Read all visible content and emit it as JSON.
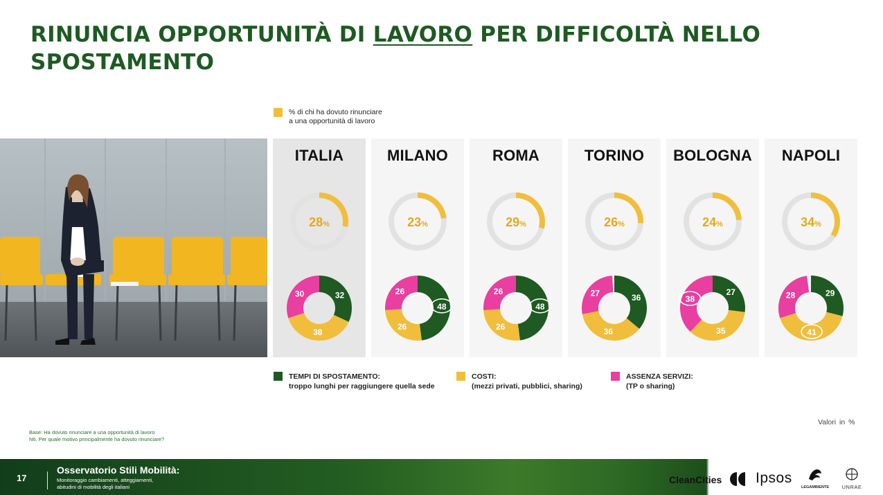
{
  "title": {
    "part1": "RINUNCIA OPPORTUNITÀ DI ",
    "underlined": "LAVORO",
    "part2": " PER DIFFICOLTÀ NELLO SPOSTAMENTO"
  },
  "legend_top": {
    "line1": "% di chi ha dovuto rinunciare",
    "line2": "a una opportunità di lavoro"
  },
  "colors": {
    "share": "#F0BE3C",
    "ring_bg": "#E2E2E2",
    "tempi": "#1E5A22",
    "costi": "#F0BE3C",
    "assenza": "#E83FA0",
    "title": "#1E5A22"
  },
  "chart_data": {
    "type": "pie",
    "subtype": "donut",
    "title": "Rinuncia opportunità di lavoro per difficoltà nello spostamento",
    "unit": "%",
    "categories": [
      "ITALIA",
      "MILANO",
      "ROMA",
      "TORINO",
      "BOLOGNA",
      "NAPOLI"
    ],
    "share_rinuncia": [
      28,
      23,
      29,
      26,
      24,
      34
    ],
    "motivi_series": [
      {
        "key": "tempi",
        "name": "TEMPI DI SPOSTAMENTO",
        "values": [
          32,
          48,
          48,
          36,
          27,
          29
        ]
      },
      {
        "key": "costi",
        "name": "COSTI",
        "values": [
          38,
          26,
          26,
          36,
          35,
          41
        ]
      },
      {
        "key": "assenza",
        "name": "ASSENZA SERVIZI",
        "values": [
          30,
          26,
          26,
          27,
          38,
          28
        ]
      }
    ],
    "highlighted": [
      "",
      "tempi",
      "tempi",
      "",
      "assenza",
      "costi"
    ]
  },
  "legend_bottom": [
    {
      "key": "tempi",
      "line1": "TEMPI DI SPOSTAMENTO:",
      "line2": "troppo lunghi per raggiungere quella sede"
    },
    {
      "key": "costi",
      "line1": "COSTI:",
      "line2": "(mezzi privati, pubblici, sharing)"
    },
    {
      "key": "assenza",
      "line1": "ASSENZA SERVIZI:",
      "line2": "(TP o sharing)"
    }
  ],
  "valori": "Valori in %",
  "notes": {
    "base": "Base: Ha dovuto rinunciare a una opportunità di lavoro",
    "question": "N6. Per quale motivo principalmente ha dovuto rinunciare?"
  },
  "footer": {
    "page": "17",
    "title": "Osservatorio Stili Mobilità:",
    "sub1": "Monitoraggio cambiamenti, atteggiamenti,",
    "sub2": "abitudini di mobilità degli italiani",
    "logo_cleancities": "CleanCities",
    "logo_ipsos": "Ipsos",
    "logo_legambiente": "LEGAMBIENTE",
    "logo_unrae": "UNRAE"
  }
}
